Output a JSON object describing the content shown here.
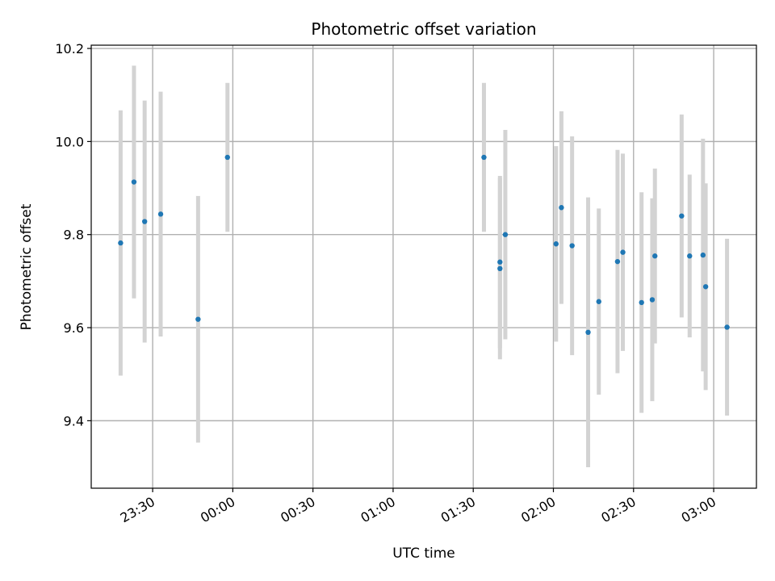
{
  "chart_data": {
    "type": "scatter",
    "title": "Photometric offset variation",
    "xlabel": "UTC time",
    "ylabel": "Photometric offset",
    "x_ticks": [
      "23:30",
      "00:00",
      "00:30",
      "01:00",
      "01:30",
      "02:00",
      "02:30",
      "03:00"
    ],
    "y_ticks": [
      "9.4",
      "9.6",
      "9.8",
      "10.0",
      "10.2"
    ],
    "ylim": [
      9.255,
      10.207
    ],
    "xlim": [
      "23:07",
      "03:16"
    ],
    "grid": true,
    "marker_color": "#1f77b4",
    "errorbar_color": "#d3d3d3",
    "points": [
      {
        "time": "23:18",
        "y": 9.782,
        "err": 0.285
      },
      {
        "time": "23:23",
        "y": 9.913,
        "err": 0.25
      },
      {
        "time": "23:27",
        "y": 9.828,
        "err": 0.26
      },
      {
        "time": "23:33",
        "y": 9.844,
        "err": 0.263
      },
      {
        "time": "23:47",
        "y": 9.618,
        "err": 0.265
      },
      {
        "time": "23:58",
        "y": 9.966,
        "err": 0.16
      },
      {
        "time": "01:34",
        "y": 9.966,
        "err": 0.16
      },
      {
        "time": "01:40",
        "y": 9.741,
        "err": 0.185
      },
      {
        "time": "01:40",
        "y": 9.727,
        "err": 0.195
      },
      {
        "time": "01:42",
        "y": 9.8,
        "err": 0.225
      },
      {
        "time": "02:01",
        "y": 9.78,
        "err": 0.21
      },
      {
        "time": "02:03",
        "y": 9.858,
        "err": 0.207
      },
      {
        "time": "02:07",
        "y": 9.776,
        "err": 0.235
      },
      {
        "time": "02:13",
        "y": 9.59,
        "err": 0.29
      },
      {
        "time": "02:17",
        "y": 9.656,
        "err": 0.2
      },
      {
        "time": "02:24",
        "y": 9.742,
        "err": 0.24
      },
      {
        "time": "02:26",
        "y": 9.762,
        "err": 0.212
      },
      {
        "time": "02:33",
        "y": 9.654,
        "err": 0.237
      },
      {
        "time": "02:37",
        "y": 9.66,
        "err": 0.218
      },
      {
        "time": "02:38",
        "y": 9.754,
        "err": 0.188
      },
      {
        "time": "02:48",
        "y": 9.84,
        "err": 0.218
      },
      {
        "time": "02:51",
        "y": 9.754,
        "err": 0.175
      },
      {
        "time": "02:56",
        "y": 9.756,
        "err": 0.25
      },
      {
        "time": "02:57",
        "y": 9.688,
        "err": 0.222
      },
      {
        "time": "03:05",
        "y": 9.601,
        "err": 0.19
      }
    ]
  }
}
